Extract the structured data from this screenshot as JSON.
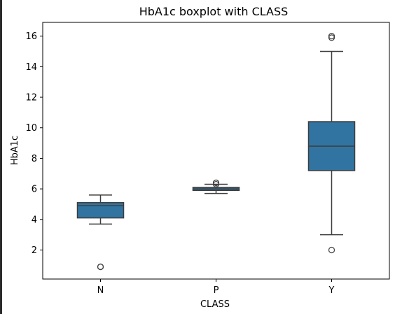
{
  "chart_data": {
    "type": "boxplot",
    "title": "HbA1c boxplot with CLASS",
    "xlabel": "CLASS",
    "ylabel": "HbA1c",
    "ylim": [
      0.1,
      16.9
    ],
    "yticks": [
      2,
      4,
      6,
      8,
      10,
      12,
      14,
      16
    ],
    "categories": [
      "N",
      "P",
      "Y"
    ],
    "grid": false,
    "box_color": "#3274a1",
    "line_color": "#3d3d3d",
    "boxes": [
      {
        "category": "N",
        "whisker_low": 3.7,
        "q1": 4.1,
        "median": 4.9,
        "q3": 5.1,
        "whisker_high": 5.6,
        "outliers": [
          0.9,
          0.9
        ]
      },
      {
        "category": "P",
        "whisker_low": 5.7,
        "q1": 5.9,
        "median": 6.0,
        "q3": 6.1,
        "whisker_high": 6.3,
        "outliers": [
          6.4,
          6.4,
          6.3
        ]
      },
      {
        "category": "Y",
        "whisker_low": 3.0,
        "q1": 7.2,
        "median": 8.8,
        "q3": 10.4,
        "whisker_high": 15.0,
        "outliers": [
          15.9,
          16.0,
          2.0
        ]
      }
    ]
  }
}
